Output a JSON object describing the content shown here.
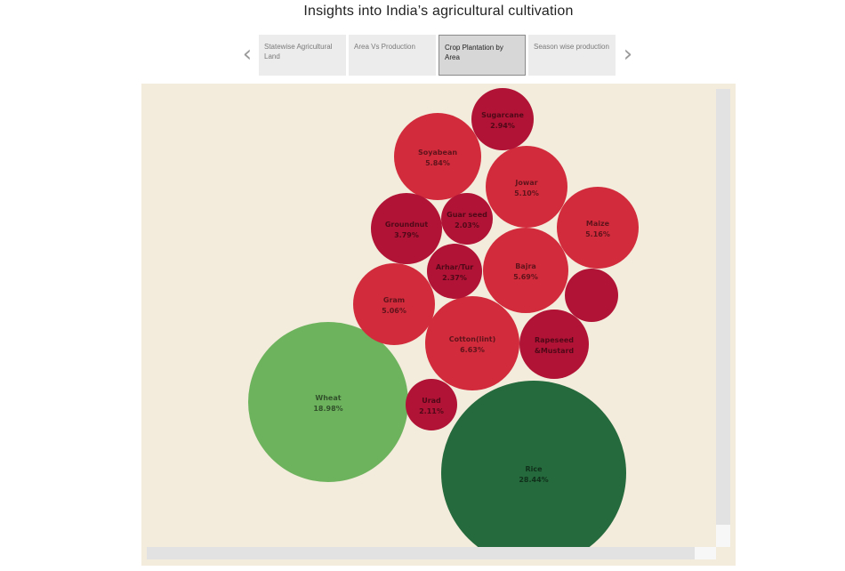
{
  "page": {
    "title": "Insights into India’s agricultural cultivation"
  },
  "nav": {
    "prev_icon": "chevron-left-icon",
    "next_icon": "chevron-right-icon",
    "prev_glyph": "‹",
    "next_glyph": "›"
  },
  "tabs": [
    {
      "label": "Statewise Agricultural Land",
      "active": false
    },
    {
      "label": "Area Vs Production",
      "active": false
    },
    {
      "label": "Crop Plantation by Area",
      "active": true
    },
    {
      "label": "Season wise production",
      "active": false
    }
  ],
  "chart_data": {
    "type": "packed-bubble",
    "title": "",
    "value_unit": "% of total area",
    "colors": {
      "background": "#f3ebdb",
      "rice": "#246a3c",
      "wheat": "#6db35e",
      "red_medium": "#d22b3c",
      "red_dark": "#b01335"
    },
    "bubbles": [
      {
        "name": "Rice",
        "value": 28.44,
        "label": "28.44%",
        "color": "#246a3c"
      },
      {
        "name": "Wheat",
        "value": 18.98,
        "label": "18.98%",
        "color": "#6db35e"
      },
      {
        "name": "Cotton(lint)",
        "value": 6.63,
        "label": "6.63%",
        "color": "#d22b3c"
      },
      {
        "name": "Bajra",
        "value": 5.69,
        "label": "5.69%",
        "color": "#d22b3c"
      },
      {
        "name": "Soyabean",
        "value": 5.84,
        "label": "5.84%",
        "color": "#d22b3c"
      },
      {
        "name": "Maize",
        "value": 5.16,
        "label": "5.16%",
        "color": "#d22b3c"
      },
      {
        "name": "Jowar",
        "value": 5.1,
        "label": "5.10%",
        "color": "#d22b3c"
      },
      {
        "name": "Gram",
        "value": 5.06,
        "label": "5.06%",
        "color": "#d22b3c"
      },
      {
        "name": "Rapeseed &Mustard",
        "value": null,
        "label": "",
        "color": "#b01335"
      },
      {
        "name": "Groundnut",
        "value": 3.79,
        "label": "3.79%",
        "color": "#b01335"
      },
      {
        "name": "",
        "value": null,
        "label": "",
        "color": "#b01335"
      },
      {
        "name": "Sugarcane",
        "value": 2.94,
        "label": "2.94%",
        "color": "#b01335"
      },
      {
        "name": "Arhar/Tur",
        "value": 2.37,
        "label": "2.37%",
        "color": "#b01335"
      },
      {
        "name": "Urad",
        "value": 2.11,
        "label": "2.11%",
        "color": "#b01335"
      },
      {
        "name": "Guar seed",
        "value": 2.03,
        "label": "2.03%",
        "color": "#b01335"
      }
    ]
  }
}
